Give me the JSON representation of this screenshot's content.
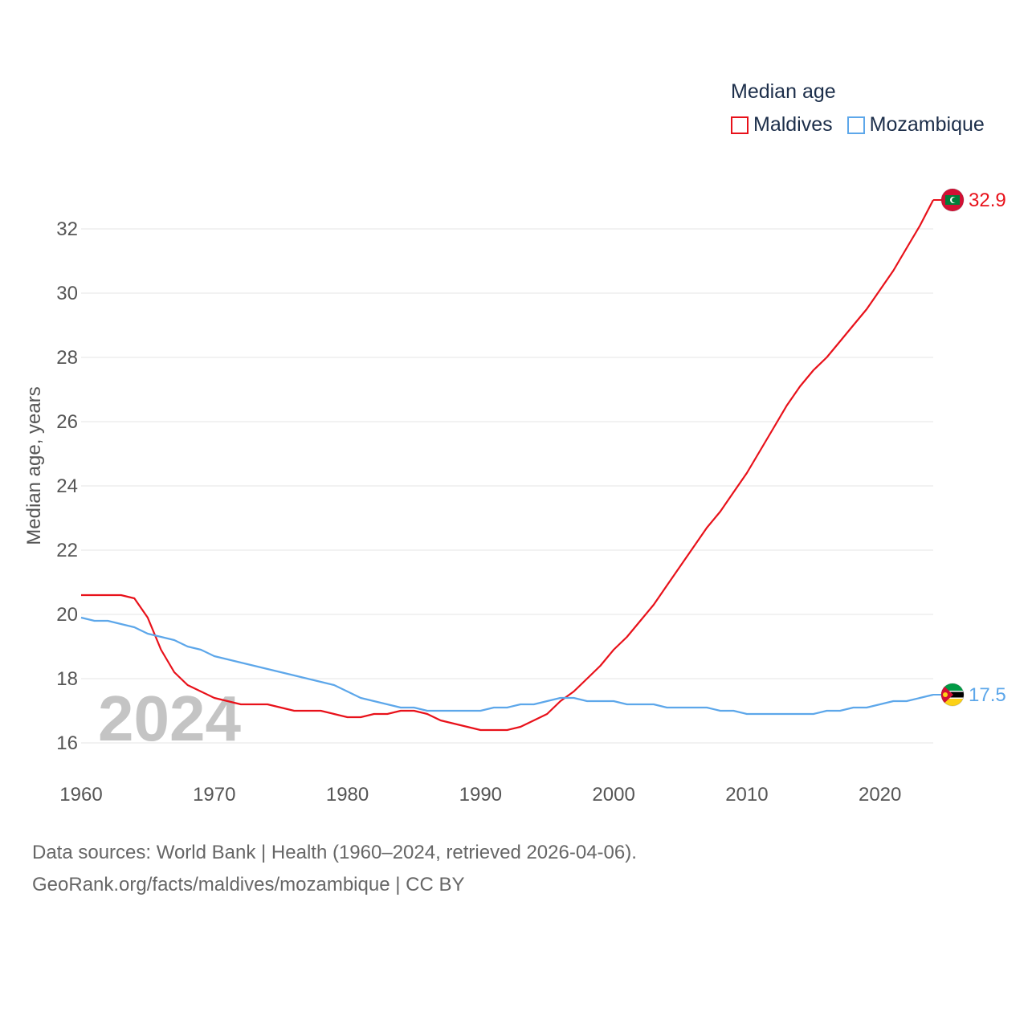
{
  "legend": {
    "title": "Median age",
    "items": [
      {
        "label": "Maldives",
        "color": "#e8111a"
      },
      {
        "label": "Mozambique",
        "color": "#5da7ea"
      }
    ]
  },
  "year_watermark": "2024",
  "source": {
    "line1": "Data sources: World Bank | Health (1960–2024, retrieved 2026-04-06).",
    "line2": "GeoRank.org/facts/maldives/mozambique | CC BY"
  },
  "chart_data": {
    "type": "line",
    "ylabel": "Median age, years",
    "xlabel": "",
    "xlim": [
      1960,
      2024
    ],
    "ylim": [
      15,
      33.5
    ],
    "x_ticks": [
      1960,
      1970,
      1980,
      1990,
      2000,
      2010,
      2020
    ],
    "y_ticks": [
      16,
      18,
      20,
      22,
      24,
      26,
      28,
      30,
      32
    ],
    "grid": true,
    "series": [
      {
        "name": "Maldives",
        "color": "#e8111a",
        "end_label": "32.9",
        "flag_icon": "maldives-flag-icon",
        "points": [
          [
            1960,
            20.6
          ],
          [
            1961,
            20.6
          ],
          [
            1962,
            20.6
          ],
          [
            1963,
            20.6
          ],
          [
            1964,
            20.5
          ],
          [
            1965,
            19.9
          ],
          [
            1966,
            18.9
          ],
          [
            1967,
            18.2
          ],
          [
            1968,
            17.8
          ],
          [
            1969,
            17.6
          ],
          [
            1970,
            17.4
          ],
          [
            1971,
            17.3
          ],
          [
            1972,
            17.2
          ],
          [
            1973,
            17.2
          ],
          [
            1974,
            17.2
          ],
          [
            1975,
            17.1
          ],
          [
            1976,
            17.0
          ],
          [
            1977,
            17.0
          ],
          [
            1978,
            17.0
          ],
          [
            1979,
            16.9
          ],
          [
            1980,
            16.8
          ],
          [
            1981,
            16.8
          ],
          [
            1982,
            16.9
          ],
          [
            1983,
            16.9
          ],
          [
            1984,
            17.0
          ],
          [
            1985,
            17.0
          ],
          [
            1986,
            16.9
          ],
          [
            1987,
            16.7
          ],
          [
            1988,
            16.6
          ],
          [
            1989,
            16.5
          ],
          [
            1990,
            16.4
          ],
          [
            1991,
            16.4
          ],
          [
            1992,
            16.4
          ],
          [
            1993,
            16.5
          ],
          [
            1994,
            16.7
          ],
          [
            1995,
            16.9
          ],
          [
            1996,
            17.3
          ],
          [
            1997,
            17.6
          ],
          [
            1998,
            18.0
          ],
          [
            1999,
            18.4
          ],
          [
            2000,
            18.9
          ],
          [
            2001,
            19.3
          ],
          [
            2002,
            19.8
          ],
          [
            2003,
            20.3
          ],
          [
            2004,
            20.9
          ],
          [
            2005,
            21.5
          ],
          [
            2006,
            22.1
          ],
          [
            2007,
            22.7
          ],
          [
            2008,
            23.2
          ],
          [
            2009,
            23.8
          ],
          [
            2010,
            24.4
          ],
          [
            2011,
            25.1
          ],
          [
            2012,
            25.8
          ],
          [
            2013,
            26.5
          ],
          [
            2014,
            27.1
          ],
          [
            2015,
            27.6
          ],
          [
            2016,
            28.0
          ],
          [
            2017,
            28.5
          ],
          [
            2018,
            29.0
          ],
          [
            2019,
            29.5
          ],
          [
            2020,
            30.1
          ],
          [
            2021,
            30.7
          ],
          [
            2022,
            31.4
          ],
          [
            2023,
            32.1
          ],
          [
            2024,
            32.9
          ]
        ]
      },
      {
        "name": "Mozambique",
        "color": "#5da7ea",
        "end_label": "17.5",
        "flag_icon": "mozambique-flag-icon",
        "points": [
          [
            1960,
            19.9
          ],
          [
            1961,
            19.8
          ],
          [
            1962,
            19.8
          ],
          [
            1963,
            19.7
          ],
          [
            1964,
            19.6
          ],
          [
            1965,
            19.4
          ],
          [
            1966,
            19.3
          ],
          [
            1967,
            19.2
          ],
          [
            1968,
            19.0
          ],
          [
            1969,
            18.9
          ],
          [
            1970,
            18.7
          ],
          [
            1971,
            18.6
          ],
          [
            1972,
            18.5
          ],
          [
            1973,
            18.4
          ],
          [
            1974,
            18.3
          ],
          [
            1975,
            18.2
          ],
          [
            1976,
            18.1
          ],
          [
            1977,
            18.0
          ],
          [
            1978,
            17.9
          ],
          [
            1979,
            17.8
          ],
          [
            1980,
            17.6
          ],
          [
            1981,
            17.4
          ],
          [
            1982,
            17.3
          ],
          [
            1983,
            17.2
          ],
          [
            1984,
            17.1
          ],
          [
            1985,
            17.1
          ],
          [
            1986,
            17.0
          ],
          [
            1987,
            17.0
          ],
          [
            1988,
            17.0
          ],
          [
            1989,
            17.0
          ],
          [
            1990,
            17.0
          ],
          [
            1991,
            17.1
          ],
          [
            1992,
            17.1
          ],
          [
            1993,
            17.2
          ],
          [
            1994,
            17.2
          ],
          [
            1995,
            17.3
          ],
          [
            1996,
            17.4
          ],
          [
            1997,
            17.4
          ],
          [
            1998,
            17.3
          ],
          [
            1999,
            17.3
          ],
          [
            2000,
            17.3
          ],
          [
            2001,
            17.2
          ],
          [
            2002,
            17.2
          ],
          [
            2003,
            17.2
          ],
          [
            2004,
            17.1
          ],
          [
            2005,
            17.1
          ],
          [
            2006,
            17.1
          ],
          [
            2007,
            17.1
          ],
          [
            2008,
            17.0
          ],
          [
            2009,
            17.0
          ],
          [
            2010,
            16.9
          ],
          [
            2011,
            16.9
          ],
          [
            2012,
            16.9
          ],
          [
            2013,
            16.9
          ],
          [
            2014,
            16.9
          ],
          [
            2015,
            16.9
          ],
          [
            2016,
            17.0
          ],
          [
            2017,
            17.0
          ],
          [
            2018,
            17.1
          ],
          [
            2019,
            17.1
          ],
          [
            2020,
            17.2
          ],
          [
            2021,
            17.3
          ],
          [
            2022,
            17.3
          ],
          [
            2023,
            17.4
          ],
          [
            2024,
            17.5
          ]
        ]
      }
    ]
  }
}
